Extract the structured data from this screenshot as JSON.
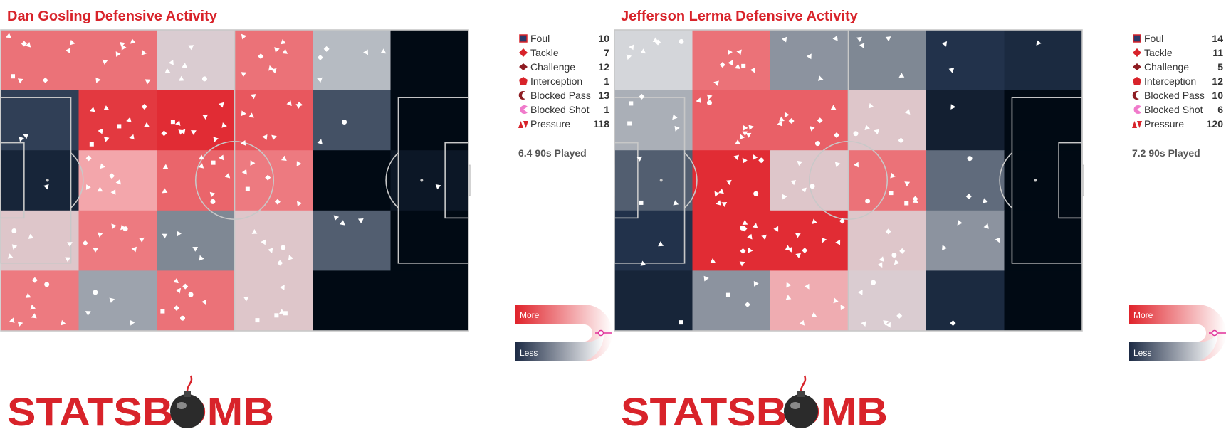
{
  "colors": {
    "title": "#d8232a",
    "heat_high": "#e0232b",
    "heat_low": "#010a14",
    "marker_fill": "#ffffff",
    "pitch_line": "#c8c8c8",
    "scale_accent": "#e0309a"
  },
  "brand": {
    "logo_text": "STATSBOMB",
    "logo_icon": "bomb-icon"
  },
  "scale": {
    "more_label": "More",
    "less_label": "Less"
  },
  "chart_data": [
    {
      "type": "heatmap",
      "title": "Dan Gosling Defensive Activity",
      "grid": {
        "columns": 6,
        "rows": 5
      },
      "intensity": [
        [
          0.18,
          0.18,
          0.42,
          0.18,
          0.52,
          1.0
        ],
        [
          0.82,
          0.05,
          0.02,
          0.12,
          0.78,
          1.0
        ],
        [
          0.9,
          0.3,
          0.15,
          0.2,
          1.0,
          0.95
        ],
        [
          0.4,
          0.2,
          0.65,
          0.4,
          0.75,
          1.0
        ],
        [
          0.2,
          0.58,
          0.18,
          0.4,
          1.0,
          1.0
        ]
      ],
      "legend": [
        {
          "label": "Foul",
          "count": "10",
          "symbol": "square"
        },
        {
          "label": "Tackle",
          "count": "7",
          "symbol": "diamond"
        },
        {
          "label": "Challenge",
          "count": "12",
          "symbol": "diamond-dark"
        },
        {
          "label": "Interception",
          "count": "1",
          "symbol": "pentagon"
        },
        {
          "label": "Blocked Pass",
          "count": "13",
          "symbol": "crescent"
        },
        {
          "label": "Blocked Shot",
          "count": "1",
          "symbol": "pacman"
        },
        {
          "label": "Pressure",
          "count": "118",
          "symbol": "triangles"
        }
      ],
      "played_label": "6.4 90s Played"
    },
    {
      "type": "heatmap",
      "title": "Jefferson Lerma Defensive Activity",
      "grid": {
        "columns": 6,
        "rows": 5
      },
      "intensity": [
        [
          0.45,
          0.18,
          0.62,
          0.65,
          0.85,
          0.88
        ],
        [
          0.55,
          0.14,
          0.14,
          0.4,
          0.92,
          1.0
        ],
        [
          0.75,
          0.02,
          0.4,
          0.18,
          0.72,
          1.0
        ],
        [
          0.85,
          0.02,
          0.02,
          0.4,
          0.62,
          1.0
        ],
        [
          0.9,
          0.62,
          0.32,
          0.42,
          0.88,
          1.0
        ]
      ],
      "legend": [
        {
          "label": "Foul",
          "count": "14",
          "symbol": "square"
        },
        {
          "label": "Tackle",
          "count": "11",
          "symbol": "diamond"
        },
        {
          "label": "Challenge",
          "count": "5",
          "symbol": "diamond-dark"
        },
        {
          "label": "Interception",
          "count": "12",
          "symbol": "pentagon"
        },
        {
          "label": "Blocked Pass",
          "count": "10",
          "symbol": "crescent"
        },
        {
          "label": "Blocked Shot",
          "count": "6",
          "symbol": "pacman"
        },
        {
          "label": "Pressure",
          "count": "120",
          "symbol": "triangles"
        }
      ],
      "played_label": "7.2 90s Played"
    }
  ]
}
